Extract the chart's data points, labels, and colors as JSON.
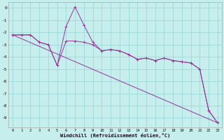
{
  "background_color": "#c5eeed",
  "grid_color": "#9dd8d8",
  "line_color": "#993399",
  "xlim": [
    -0.5,
    23.5
  ],
  "ylim": [
    -9.8,
    0.5
  ],
  "ytick_vals": [
    0,
    -1,
    -2,
    -3,
    -4,
    -5,
    -6,
    -7,
    -8,
    -9
  ],
  "ytick_labels": [
    "0",
    "-1",
    "-2",
    "-3",
    "-4",
    "-5",
    "-6",
    "-7",
    "-8",
    "-9"
  ],
  "xtick_vals": [
    0,
    1,
    2,
    3,
    4,
    5,
    6,
    7,
    8,
    9,
    10,
    11,
    12,
    13,
    14,
    15,
    16,
    17,
    18,
    19,
    20,
    21,
    22,
    23
  ],
  "xtick_labels": [
    "0",
    "1",
    "2",
    "3",
    "4",
    "5",
    "6",
    "7",
    "8",
    "9",
    "10",
    "11",
    "12",
    "13",
    "14",
    "15",
    "16",
    "17",
    "18",
    "19",
    "20",
    "21",
    "22",
    "23"
  ],
  "xlabel": "Windchill (Refroidissement éolien,°C)",
  "series1_x": [
    0,
    1,
    2,
    3,
    4,
    5,
    6,
    7,
    8,
    9,
    10,
    11,
    12,
    13,
    14,
    15,
    16,
    17,
    18,
    19,
    20,
    21,
    22,
    23
  ],
  "series1_y": [
    -2.2,
    -2.2,
    -2.2,
    -2.8,
    -3.0,
    -4.7,
    -1.5,
    0.1,
    -1.4,
    -2.8,
    -3.5,
    -3.4,
    -3.5,
    -3.8,
    -4.2,
    -4.1,
    -4.3,
    -4.1,
    -4.3,
    -4.4,
    -4.5,
    -5.0,
    -8.4,
    -9.4
  ],
  "series2_x": [
    0,
    1,
    2,
    3,
    4,
    5,
    6,
    7,
    8,
    9,
    10,
    11,
    12,
    13,
    14,
    15,
    16,
    17,
    18,
    19,
    20,
    21,
    22,
    23
  ],
  "series2_y": [
    -2.2,
    -2.2,
    -2.2,
    -2.8,
    -3.0,
    -4.7,
    -2.7,
    -2.7,
    -2.8,
    -3.0,
    -3.5,
    -3.4,
    -3.5,
    -3.8,
    -4.2,
    -4.1,
    -4.3,
    -4.1,
    -4.3,
    -4.4,
    -4.5,
    -5.0,
    -8.4,
    -9.4
  ],
  "series3_x": [
    0,
    23
  ],
  "series3_y": [
    -2.2,
    -9.4
  ]
}
